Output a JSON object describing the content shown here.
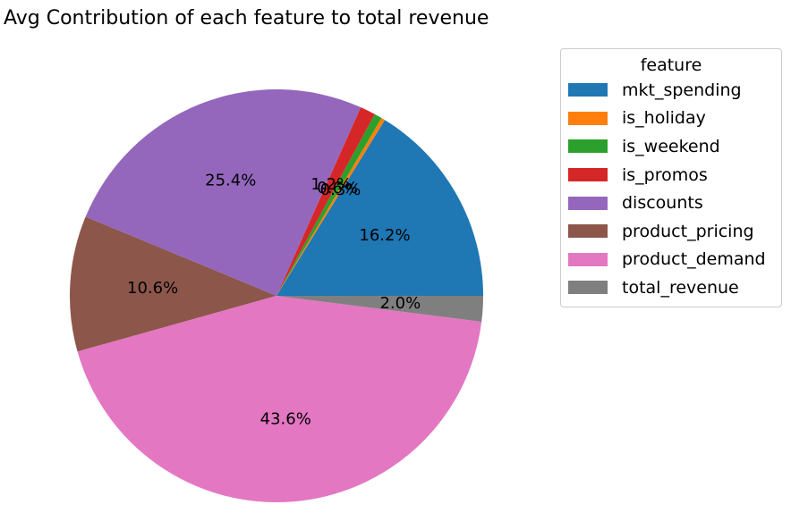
{
  "chart_data": {
    "type": "pie",
    "title": "Avg Contribution of each feature to total revenue",
    "legend_title": "feature",
    "legend_placement": "right",
    "start_angle_deg": 0,
    "direction": "counterclockwise",
    "slices": [
      {
        "name": "mkt_spending",
        "value": 16.2,
        "label": "16.2%",
        "color": "#1f77b4"
      },
      {
        "name": "is_holiday",
        "value": 0.3,
        "label": "0.3%",
        "color": "#ff7f0e"
      },
      {
        "name": "is_weekend",
        "value": 0.6,
        "label": "0.6%",
        "color": "#2ca02c"
      },
      {
        "name": "is_promos",
        "value": 1.2,
        "label": "1.2%",
        "color": "#d62728"
      },
      {
        "name": "discounts",
        "value": 25.4,
        "label": "25.4%",
        "color": "#9467bd"
      },
      {
        "name": "product_pricing",
        "value": 10.6,
        "label": "10.6%",
        "color": "#8c564b"
      },
      {
        "name": "product_demand",
        "value": 43.6,
        "label": "43.6%",
        "color": "#e377c2"
      },
      {
        "name": "total_revenue",
        "value": 2.0,
        "label": "2.0%",
        "color": "#7f7f7f"
      }
    ]
  }
}
